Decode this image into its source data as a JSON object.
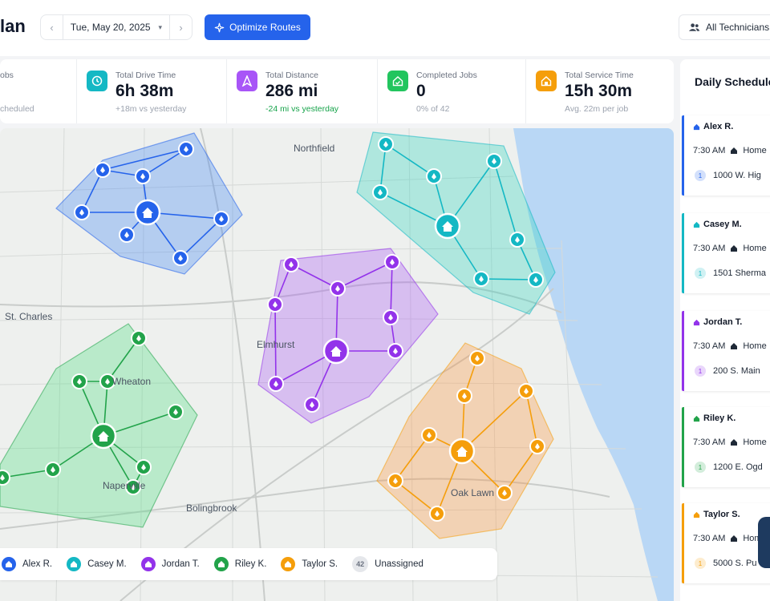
{
  "header": {
    "title": "lan",
    "date": "Tue, May 20, 2025",
    "optimize_label": "Optimize Routes",
    "technicians_label": "All Technicians"
  },
  "stats": [
    {
      "label": "obs",
      "value": "",
      "sub": "cheduled",
      "color": "#9ca3af",
      "icon": "briefcase-icon"
    },
    {
      "label": "Total Drive Time",
      "value": "6h 38m",
      "sub": "+18m vs yesterday",
      "color": "#14b8c4",
      "icon": "clock-icon"
    },
    {
      "label": "Total Distance",
      "value": "286 mi",
      "sub": "-24 mi vs yesterday",
      "color": "#a855f7",
      "icon": "route-icon"
    },
    {
      "label": "Completed Jobs",
      "value": "0",
      "sub": "0% of 42",
      "color": "#22c55e",
      "icon": "check-home-icon"
    },
    {
      "label": "Total Service Time",
      "value": "15h 30m",
      "sub": "Avg. 22m per job",
      "color": "#f59e0b",
      "icon": "service-icon"
    }
  ],
  "map": {
    "labels": [
      "Northfield",
      "St. Charles",
      "Wheaton",
      "Elmhurst",
      "Naperville",
      "Oak Lawn",
      "Bolingbrook"
    ]
  },
  "legend": [
    {
      "name": "Alex R.",
      "color": "#2563eb"
    },
    {
      "name": "Casey M.",
      "color": "#14b8c4"
    },
    {
      "name": "Jordan T.",
      "color": "#9333ea"
    },
    {
      "name": "Riley K.",
      "color": "#22a34a"
    },
    {
      "name": "Taylor S.",
      "color": "#f59e0b"
    }
  ],
  "legend_unassigned": {
    "count": "42",
    "label": "Unassigned"
  },
  "schedule": {
    "title": "Daily Schedule",
    "cards": [
      {
        "name": "Alex R.",
        "time": "7:30 AM",
        "start": "Home",
        "first_num": "1",
        "first_addr": "1000 W. Hig",
        "color": "#2563eb"
      },
      {
        "name": "Casey M.",
        "time": "7:30 AM",
        "start": "Home",
        "first_num": "1",
        "first_addr": "1501 Sherma",
        "color": "#14b8c4"
      },
      {
        "name": "Jordan T.",
        "time": "7:30 AM",
        "start": "Home",
        "first_num": "1",
        "first_addr": "200 S. Main",
        "color": "#9333ea"
      },
      {
        "name": "Riley K.",
        "time": "7:30 AM",
        "start": "Home",
        "first_num": "1",
        "first_addr": "1200 E. Ogd",
        "color": "#22a34a"
      },
      {
        "name": "Taylor S.",
        "time": "7:30 AM",
        "start": "Hom",
        "first_num": "1",
        "first_addr": "5000 S. Pu",
        "color": "#f59e0b"
      }
    ]
  }
}
